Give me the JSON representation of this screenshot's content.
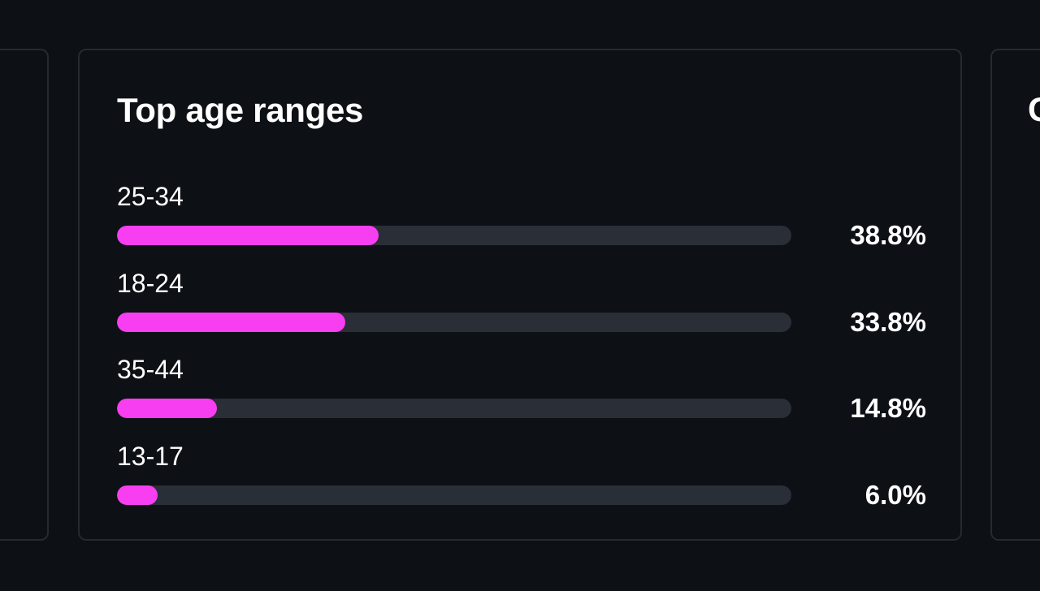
{
  "left_card": {
    "values": [
      "%",
      "%",
      "%",
      "%"
    ]
  },
  "main_card": {
    "title": "Top age ranges",
    "accent_color": "#f73ef0",
    "track_color": "#2a2e37",
    "rows": [
      {
        "label": "25-34",
        "value": "38.8%",
        "fill": 0.388
      },
      {
        "label": "18-24",
        "value": "33.8%",
        "fill": 0.338
      },
      {
        "label": "35-44",
        "value": "14.8%",
        "fill": 0.148
      },
      {
        "label": "13-17",
        "value": "6.0%",
        "fill": 0.06
      }
    ]
  },
  "right_card": {
    "title_fragment": "C"
  }
}
